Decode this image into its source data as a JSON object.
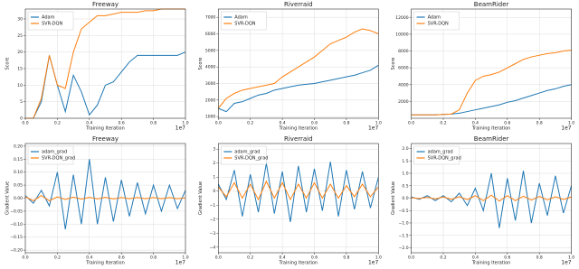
{
  "chart_data": [
    {
      "type": "line",
      "title": "Freeway",
      "xlabel": "Training Iteration",
      "ylabel": "Score",
      "x_offset_label": "1e7",
      "grid": true,
      "legend": "upper left",
      "x": [
        0,
        0.05,
        0.1,
        0.15,
        0.2,
        0.25,
        0.3,
        0.35,
        0.4,
        0.45,
        0.5,
        0.55,
        0.6,
        0.65,
        0.7,
        0.75,
        0.8,
        0.85,
        0.9,
        0.95,
        1.0
      ],
      "xlim": [
        0,
        1
      ],
      "xticks": [
        {
          "value": 0,
          "label": "0.0"
        },
        0.2,
        0.4,
        0.6,
        0.8,
        {
          "value": 1,
          "label": "1.0"
        }
      ],
      "ylim": [
        0,
        33
      ],
      "yticks": [
        0,
        5,
        10,
        15,
        20,
        25,
        30
      ],
      "series": [
        {
          "name": "Adam",
          "color": "#1f77b4",
          "values": [
            0,
            0,
            5,
            19,
            10,
            2,
            13,
            8,
            1,
            4,
            10,
            11,
            14,
            17,
            19,
            19,
            19,
            19,
            19,
            19,
            20
          ]
        },
        {
          "name": "SVR-DQN",
          "color": "#ff7f0e",
          "values": [
            0,
            0,
            6,
            19,
            10,
            9,
            20,
            27,
            29,
            31,
            31,
            31.5,
            32,
            32,
            32,
            32.5,
            32.5,
            33,
            33,
            33,
            33
          ]
        }
      ]
    },
    {
      "type": "line",
      "title": "Riverraid",
      "xlabel": "Training Iteration",
      "ylabel": "Score",
      "x_offset_label": "1e7",
      "grid": true,
      "legend": "upper left",
      "x": [
        0,
        0.05,
        0.1,
        0.15,
        0.2,
        0.25,
        0.3,
        0.35,
        0.4,
        0.45,
        0.5,
        0.55,
        0.6,
        0.65,
        0.7,
        0.75,
        0.8,
        0.85,
        0.9,
        0.95,
        1.0
      ],
      "xlim": [
        0,
        1
      ],
      "xticks": [
        {
          "value": 0,
          "label": "0.0"
        },
        0.2,
        0.4,
        0.6,
        0.8,
        {
          "value": 1,
          "label": "1.0"
        }
      ],
      "ylim": [
        900,
        7500
      ],
      "yticks": [
        1000,
        2000,
        3000,
        4000,
        5000,
        6000,
        7000
      ],
      "series": [
        {
          "name": "Adam",
          "color": "#1f77b4",
          "values": [
            1500,
            1300,
            1800,
            1900,
            2100,
            2300,
            2400,
            2600,
            2700,
            2800,
            2900,
            2950,
            3000,
            3100,
            3200,
            3300,
            3400,
            3500,
            3650,
            3800,
            4100
          ]
        },
        {
          "name": "SVR-DQN",
          "color": "#ff7f0e",
          "values": [
            1500,
            2100,
            2400,
            2600,
            2700,
            2800,
            2900,
            3000,
            3400,
            3700,
            4000,
            4300,
            4600,
            5000,
            5400,
            5600,
            5800,
            6100,
            6300,
            6200,
            6000
          ]
        }
      ]
    },
    {
      "type": "line",
      "title": "BeamRider",
      "xlabel": "Training Iteration",
      "ylabel": "Score",
      "x_offset_label": "1e7",
      "grid": true,
      "legend": "upper left",
      "x": [
        0,
        0.05,
        0.1,
        0.15,
        0.2,
        0.25,
        0.3,
        0.35,
        0.4,
        0.45,
        0.5,
        0.55,
        0.6,
        0.65,
        0.7,
        0.75,
        0.8,
        0.85,
        0.9,
        0.95,
        1.0
      ],
      "xlim": [
        0,
        1
      ],
      "xticks": [
        {
          "value": 0,
          "label": "0.0"
        },
        0.2,
        0.4,
        0.6,
        0.8,
        {
          "value": 1,
          "label": "1.0"
        }
      ],
      "ylim": [
        0,
        13000
      ],
      "yticks": [
        2000,
        4000,
        6000,
        8000,
        10000,
        12000
      ],
      "series": [
        {
          "name": "Adam",
          "color": "#1f77b4",
          "values": [
            400,
            400,
            400,
            400,
            450,
            500,
            600,
            800,
            1000,
            1200,
            1400,
            1600,
            1900,
            2100,
            2400,
            2700,
            3000,
            3300,
            3500,
            3800,
            4000
          ]
        },
        {
          "name": "SVR-DQN",
          "color": "#ff7f0e",
          "values": [
            400,
            400,
            400,
            400,
            450,
            500,
            1000,
            3000,
            4500,
            5000,
            5200,
            5500,
            6000,
            6500,
            7000,
            7300,
            7500,
            7700,
            7800,
            8000,
            8100
          ]
        }
      ]
    },
    {
      "type": "line",
      "title": "Freeway",
      "xlabel": "Training Iteration",
      "ylabel": "Gradient Value",
      "x_offset_label": "1e7",
      "grid": true,
      "legend": "upper left",
      "x": [
        0,
        0.05,
        0.1,
        0.15,
        0.2,
        0.25,
        0.3,
        0.35,
        0.4,
        0.45,
        0.5,
        0.55,
        0.6,
        0.65,
        0.7,
        0.75,
        0.8,
        0.85,
        0.9,
        0.95,
        1.0
      ],
      "xlim": [
        0,
        1
      ],
      "xticks": [
        {
          "value": 0,
          "label": "0.0"
        },
        0.2,
        0.4,
        0.6,
        0.8,
        {
          "value": 1,
          "label": "1.0"
        }
      ],
      "ylim": [
        -0.21,
        0.21
      ],
      "yticks": [
        {
          "value": -0.2,
          "label": "−0.20"
        },
        {
          "value": -0.15,
          "label": "−0.15"
        },
        {
          "value": -0.1,
          "label": "−0.10"
        },
        {
          "value": -0.05,
          "label": "−0.05"
        },
        {
          "value": 0,
          "label": "0.00"
        },
        {
          "value": 0.05,
          "label": "0.05"
        },
        {
          "value": 0.1,
          "label": "0.10"
        },
        {
          "value": 0.15,
          "label": "0.15"
        },
        {
          "value": 0.2,
          "label": "0.20"
        }
      ],
      "series": [
        {
          "name": "adam_grad",
          "color": "#1f77b4",
          "values": [
            0.01,
            -0.02,
            0.03,
            -0.03,
            0.1,
            -0.12,
            0.09,
            -0.1,
            0.15,
            -0.1,
            0.08,
            -0.09,
            0.07,
            -0.07,
            0.06,
            -0.06,
            0.05,
            -0.05,
            0.05,
            -0.04,
            0.03
          ]
        },
        {
          "name": "SVR-DQN_grad",
          "color": "#ff7f0e",
          "values": [
            0.005,
            -0.01,
            0.01,
            -0.01,
            0.005,
            -0.005,
            0.004,
            -0.004,
            0.003,
            -0.003,
            0.003,
            -0.003,
            0.002,
            -0.002,
            0.002,
            -0.002,
            0.002,
            -0.002,
            0.002,
            -0.002,
            0.001
          ]
        }
      ]
    },
    {
      "type": "line",
      "title": "Riverraid",
      "xlabel": "Training Iteration",
      "ylabel": "Gradient Value",
      "x_offset_label": "1e7",
      "grid": true,
      "legend": "upper left",
      "x": [
        0,
        0.05,
        0.1,
        0.15,
        0.2,
        0.25,
        0.3,
        0.35,
        0.4,
        0.45,
        0.5,
        0.55,
        0.6,
        0.65,
        0.7,
        0.75,
        0.8,
        0.85,
        0.9,
        0.95,
        1.0
      ],
      "xlim": [
        0,
        1
      ],
      "xticks": [
        {
          "value": 0,
          "label": "0.0"
        },
        0.2,
        0.4,
        0.6,
        0.8,
        {
          "value": 1,
          "label": "1.0"
        }
      ],
      "ylim": [
        -4.4,
        3.4
      ],
      "yticks": [
        {
          "value": -4,
          "label": "−4"
        },
        {
          "value": -3,
          "label": "−3"
        },
        {
          "value": -2,
          "label": "−2"
        },
        {
          "value": -1,
          "label": "−1"
        },
        0,
        1,
        2,
        3
      ],
      "series": [
        {
          "name": "adam_grad",
          "color": "#1f77b4",
          "values": [
            0.5,
            -0.6,
            1.5,
            -1.8,
            1.2,
            -1.5,
            2.0,
            -1.6,
            1.4,
            -2.2,
            1.8,
            -1.5,
            1.6,
            -1.4,
            2.1,
            -1.8,
            1.5,
            -1.3,
            1.4,
            -1.2,
            1.0
          ]
        },
        {
          "name": "SVR-DQN_grad",
          "color": "#ff7f0e",
          "values": [
            0.3,
            -0.4,
            0.6,
            -0.5,
            0.5,
            -0.6,
            0.7,
            -0.5,
            0.6,
            -0.6,
            0.5,
            -0.5,
            0.6,
            -0.5,
            0.5,
            -0.5,
            0.4,
            -0.4,
            0.5,
            -0.4,
            0.3
          ]
        }
      ]
    },
    {
      "type": "line",
      "title": "BeamRider",
      "xlabel": "Training Iteration",
      "ylabel": "Gradient Value",
      "x_offset_label": "1e7",
      "grid": true,
      "legend": "upper left",
      "x": [
        0,
        0.05,
        0.1,
        0.15,
        0.2,
        0.25,
        0.3,
        0.35,
        0.4,
        0.45,
        0.5,
        0.55,
        0.6,
        0.65,
        0.7,
        0.75,
        0.8,
        0.85,
        0.9,
        0.95,
        1.0
      ],
      "xlim": [
        0,
        1
      ],
      "xticks": [
        {
          "value": 0,
          "label": "0.0"
        },
        0.2,
        0.4,
        0.6,
        0.8,
        {
          "value": 1,
          "label": "1.0"
        }
      ],
      "ylim": [
        -2.2,
        2.2
      ],
      "yticks": [
        {
          "value": -2,
          "label": "−2.0"
        },
        {
          "value": -1.5,
          "label": "−1.5"
        },
        {
          "value": -1,
          "label": "−1.0"
        },
        {
          "value": -0.5,
          "label": "−0.5"
        },
        {
          "value": 0,
          "label": "0.0"
        },
        {
          "value": 0.5,
          "label": "0.5"
        },
        {
          "value": 1,
          "label": "1.0"
        },
        {
          "value": 1.5,
          "label": "1.5"
        },
        {
          "value": 2,
          "label": "2.0"
        }
      ],
      "series": [
        {
          "name": "adam_grad",
          "color": "#1f77b4",
          "values": [
            0.05,
            -0.05,
            0.1,
            -0.1,
            0.1,
            -0.15,
            0.2,
            -0.3,
            0.4,
            -0.5,
            1.0,
            -1.2,
            0.8,
            -0.9,
            1.1,
            -1.0,
            0.6,
            -0.7,
            0.9,
            -0.6,
            0.5
          ]
        },
        {
          "name": "SVR-DQN_grad",
          "color": "#ff7f0e",
          "values": [
            0.02,
            -0.02,
            0.03,
            -0.03,
            0.05,
            -0.05,
            0.06,
            -0.06,
            0.1,
            -0.1,
            0.12,
            -0.12,
            0.1,
            -0.1,
            0.08,
            -0.08,
            0.07,
            -0.07,
            0.06,
            -0.06,
            0.05
          ]
        }
      ]
    }
  ]
}
